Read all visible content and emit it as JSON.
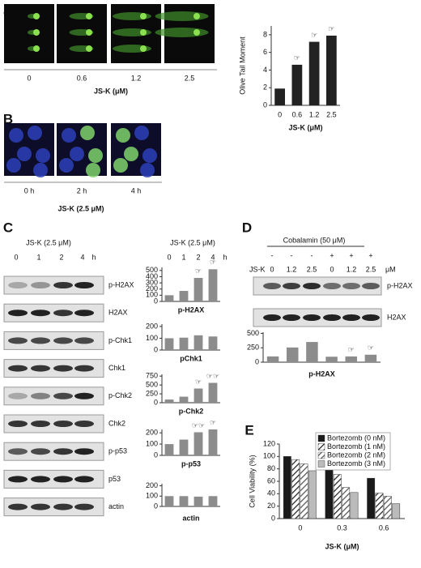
{
  "panels": {
    "A": {
      "label": "A",
      "images": [
        "0",
        "0.6",
        "1.2",
        "2.5"
      ],
      "x_label": "JS-K (μM)"
    },
    "B": {
      "label": "B",
      "images": [
        "0 h",
        "2 h",
        "4 h"
      ],
      "x_label": "JS-K (2.5 μM)"
    },
    "C": {
      "label": "C",
      "treatment": "JS-K (2.5 μM)",
      "times": [
        "0",
        "1",
        "2",
        "4"
      ],
      "time_unit": "h",
      "blots": [
        "p-H2AX",
        "H2AX",
        "p-Chk1",
        "Chk1",
        "p-Chk2",
        "Chk2",
        "p-p53",
        "p53",
        "actin"
      ],
      "chart_treatment": "JS-K (2.5 μM)"
    },
    "D": {
      "label": "D",
      "cobalamin": "Cobalamin (50 μM)",
      "cobalamin_signs": [
        "-",
        "-",
        "-",
        "+",
        "+",
        "+"
      ],
      "jsk": "JS-K",
      "doses": [
        "0",
        "1.2",
        "2.5",
        "0",
        "1.2",
        "2.5"
      ],
      "dose_unit": "μM",
      "blots": [
        "p-H2AX",
        "H2AX"
      ]
    },
    "E": {
      "label": "E"
    }
  },
  "chart_data": [
    {
      "type": "bar",
      "y_label": "Olive Tail Moment",
      "x_label": "JS-K (μM)",
      "categories": [
        "0",
        "0.6",
        "1.2",
        "2.5"
      ],
      "values": [
        1.9,
        4.6,
        7.2,
        7.9
      ],
      "color": "#222222",
      "ylim": [
        0,
        9
      ],
      "yticks": [
        0,
        2,
        4,
        6,
        8
      ],
      "sig_labels": [
        null,
        "☞",
        "☞",
        "☞"
      ]
    },
    {
      "type": "bar",
      "x_label": "p-H2AX",
      "categories": [
        "0",
        "1",
        "2",
        "4"
      ],
      "x_unit": "h",
      "values": [
        100,
        170,
        380,
        520
      ],
      "color": "#8c8c8c",
      "ylim": [
        0,
        550
      ],
      "yticks": [
        0,
        100,
        200,
        300,
        400,
        500
      ],
      "sig_labels": [
        null,
        null,
        "☞",
        "☞"
      ]
    },
    {
      "type": "bar",
      "x_label": "pChk1",
      "categories": [
        null,
        null,
        null,
        null
      ],
      "values": [
        100,
        105,
        125,
        115
      ],
      "color": "#8c8c8c",
      "ylim": [
        0,
        220
      ],
      "yticks": [
        0,
        100,
        200
      ]
    },
    {
      "type": "bar",
      "x_label": "p-Chk2",
      "categories": [
        null,
        null,
        null,
        null
      ],
      "values": [
        90,
        170,
        400,
        560
      ],
      "color": "#8c8c8c",
      "ylim": [
        0,
        800
      ],
      "yticks": [
        0,
        250,
        500,
        750
      ],
      "sig_labels": [
        null,
        null,
        "☞",
        "☞☞"
      ]
    },
    {
      "type": "bar",
      "x_label": "p-p53",
      "categories": [
        null,
        null,
        null,
        null
      ],
      "values": [
        100,
        140,
        205,
        230
      ],
      "color": "#8c8c8c",
      "ylim": [
        0,
        230
      ],
      "yticks": [
        0,
        100,
        200
      ],
      "sig_labels": [
        null,
        null,
        "☞☞",
        "☞"
      ]
    },
    {
      "type": "bar",
      "x_label": "actin",
      "categories": [
        null,
        null,
        null,
        null
      ],
      "values": [
        100,
        100,
        95,
        100
      ],
      "color": "#8c8c8c",
      "ylim": [
        0,
        220
      ],
      "yticks": [
        0,
        100,
        200
      ]
    },
    {
      "type": "bar",
      "x_label": "p-H2AX",
      "categories": [
        null,
        null,
        null,
        null,
        null,
        null
      ],
      "values": [
        100,
        255,
        350,
        95,
        100,
        130
      ],
      "color": "#8c8c8c",
      "ylim": [
        0,
        520
      ],
      "yticks": [
        0,
        250,
        500
      ],
      "sig_labels": [
        null,
        null,
        null,
        null,
        "☞",
        "☞"
      ]
    },
    {
      "type": "bar",
      "y_label": "Cell Viability (%)",
      "x_label": "JS-K (μM)",
      "categories": [
        "0",
        "0.3",
        "0.6"
      ],
      "ylim": [
        0,
        120
      ],
      "yticks": [
        0,
        20,
        40,
        60,
        80,
        100,
        120
      ],
      "legend": "upper right",
      "series": [
        {
          "name": "Bortezomb (0 nM)",
          "color": "#1a1a1a",
          "values": [
            100,
            86,
            65
          ]
        },
        {
          "name": "Bortezomb (1 nM)",
          "color": "#222222",
          "pattern": "hatch",
          "values": [
            95,
            71,
            41
          ]
        },
        {
          "name": "Bortezomb (2 nM)",
          "color": "#555555",
          "pattern": "hatch",
          "values": [
            88,
            50,
            36
          ]
        },
        {
          "name": "Bortezomb (3 nM)",
          "color": "#bbbbbb",
          "values": [
            77,
            42,
            24
          ]
        }
      ]
    }
  ]
}
